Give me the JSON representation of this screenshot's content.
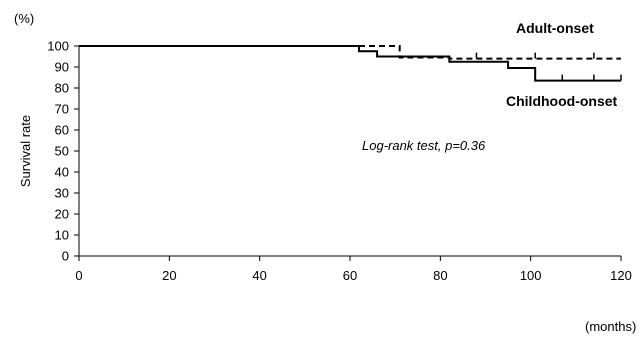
{
  "chart_data": {
    "type": "line",
    "title": "",
    "ylabel": "Survival rate",
    "y_unit_label": "(%)",
    "xlabel": "(months)",
    "xlim": [
      0,
      120
    ],
    "ylim": [
      0,
      100
    ],
    "x_ticks": [
      0,
      20,
      40,
      60,
      80,
      100,
      120
    ],
    "y_ticks": [
      0,
      10,
      20,
      30,
      40,
      50,
      60,
      70,
      80,
      90,
      100
    ],
    "grid": false,
    "step": true,
    "series": [
      {
        "name": "Adult-onset",
        "style": "dashed",
        "color": "#000000",
        "x": [
          0,
          71,
          82,
          120
        ],
        "y": [
          100,
          94.5,
          94,
          94
        ],
        "censor_x": [
          88,
          101,
          114
        ]
      },
      {
        "name": "Childhood-onset",
        "style": "solid",
        "color": "#000000",
        "x": [
          0,
          62,
          66,
          82,
          95,
          101,
          120
        ],
        "y": [
          100,
          97.5,
          95,
          92.5,
          89.5,
          83.5,
          83.5
        ],
        "censor_x": [
          107,
          114,
          120
        ]
      }
    ],
    "annotations": [
      "Log-rank test, p=0.36"
    ]
  }
}
